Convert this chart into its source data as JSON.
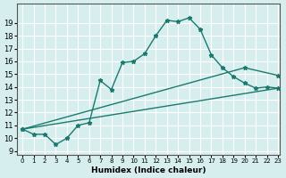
{
  "bg_color": "#d7eeee",
  "grid_color": "#ffffff",
  "line_color": "#1a7a6e",
  "xlabel": "Humidex (Indice chaleur)",
  "ylim": [
    9,
    20
  ],
  "xlim": [
    -0.5,
    23.2
  ],
  "yticks": [
    9,
    10,
    11,
    12,
    13,
    14,
    15,
    16,
    17,
    18,
    19
  ],
  "xticks": [
    0,
    1,
    2,
    3,
    4,
    5,
    6,
    7,
    8,
    9,
    10,
    11,
    12,
    13,
    14,
    15,
    16,
    17,
    18,
    19,
    20,
    21,
    22,
    23
  ],
  "line1_x": [
    0,
    1,
    2,
    3,
    4,
    5,
    6,
    7,
    8,
    9,
    10,
    11,
    12,
    13,
    14,
    15,
    16,
    17,
    18,
    19,
    20,
    21,
    22,
    23
  ],
  "line1_y": [
    10.7,
    10.3,
    10.3,
    9.5,
    10.0,
    11.0,
    11.2,
    14.5,
    13.8,
    15.9,
    16.0,
    16.6,
    18.0,
    19.2,
    19.1,
    19.4,
    18.5,
    16.5,
    15.5,
    14.8,
    14.3,
    13.9,
    14.0,
    13.9
  ],
  "line2_x": [
    0,
    23
  ],
  "line2_y": [
    10.7,
    13.9
  ],
  "line3_x": [
    0,
    20,
    23
  ],
  "line3_y": [
    10.7,
    15.5,
    14.9
  ]
}
